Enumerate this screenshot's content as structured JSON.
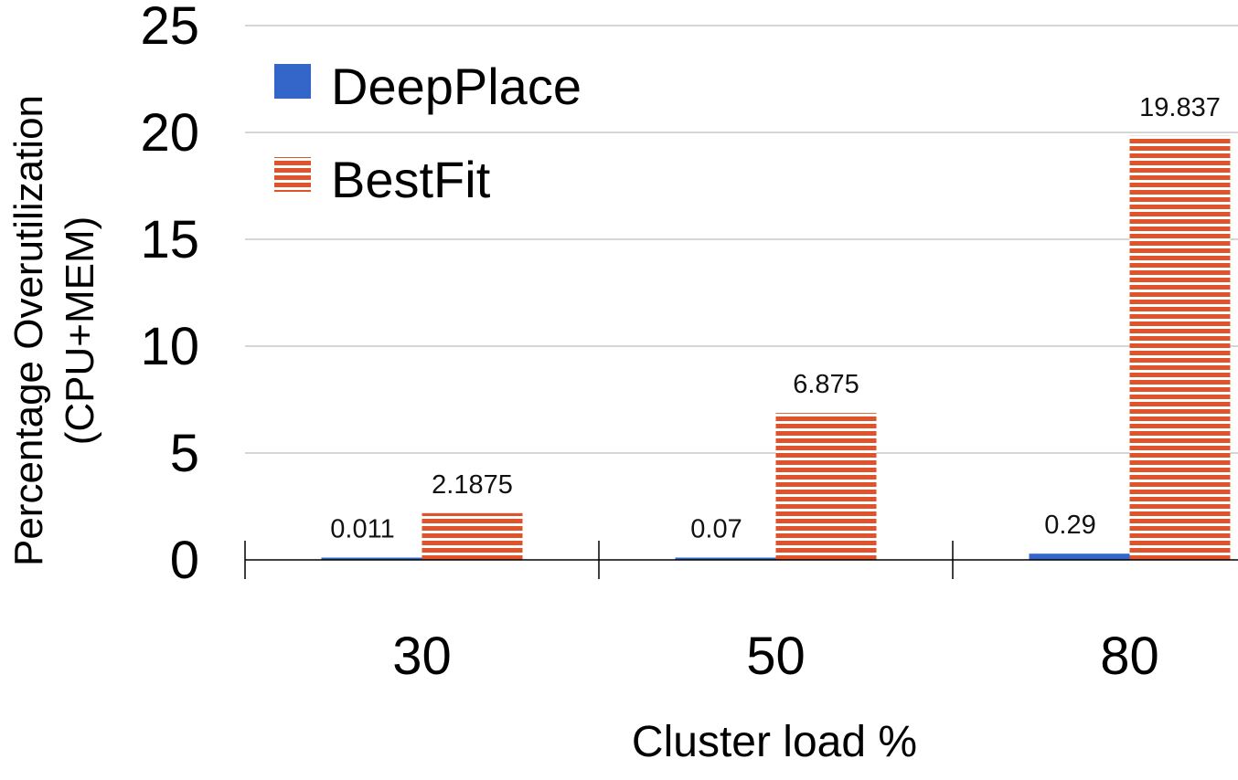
{
  "chart_data": {
    "type": "bar",
    "categories": [
      "30",
      "50",
      "80"
    ],
    "series": [
      {
        "name": "DeepPlace",
        "values": [
          0.011,
          0.07,
          0.29
        ],
        "labels": [
          "0.011",
          "0.07",
          "0.29"
        ],
        "color": "#3465c9",
        "pattern": "solid"
      },
      {
        "name": "BestFit",
        "values": [
          2.1875,
          6.875,
          19.837
        ],
        "labels": [
          "2.1875",
          "6.875",
          "19.837"
        ],
        "color": "#e0522a",
        "pattern": "horizontal-stripes"
      }
    ],
    "yticks": [
      "0",
      "5",
      "10",
      "15",
      "20",
      "25"
    ],
    "ylim": [
      0,
      25
    ],
    "xlabel": "Cluster load %",
    "ylabel_lines": [
      "Percentage Overutilization",
      "(CPU+MEM)"
    ],
    "grid": true,
    "legend_position": "top-left"
  }
}
